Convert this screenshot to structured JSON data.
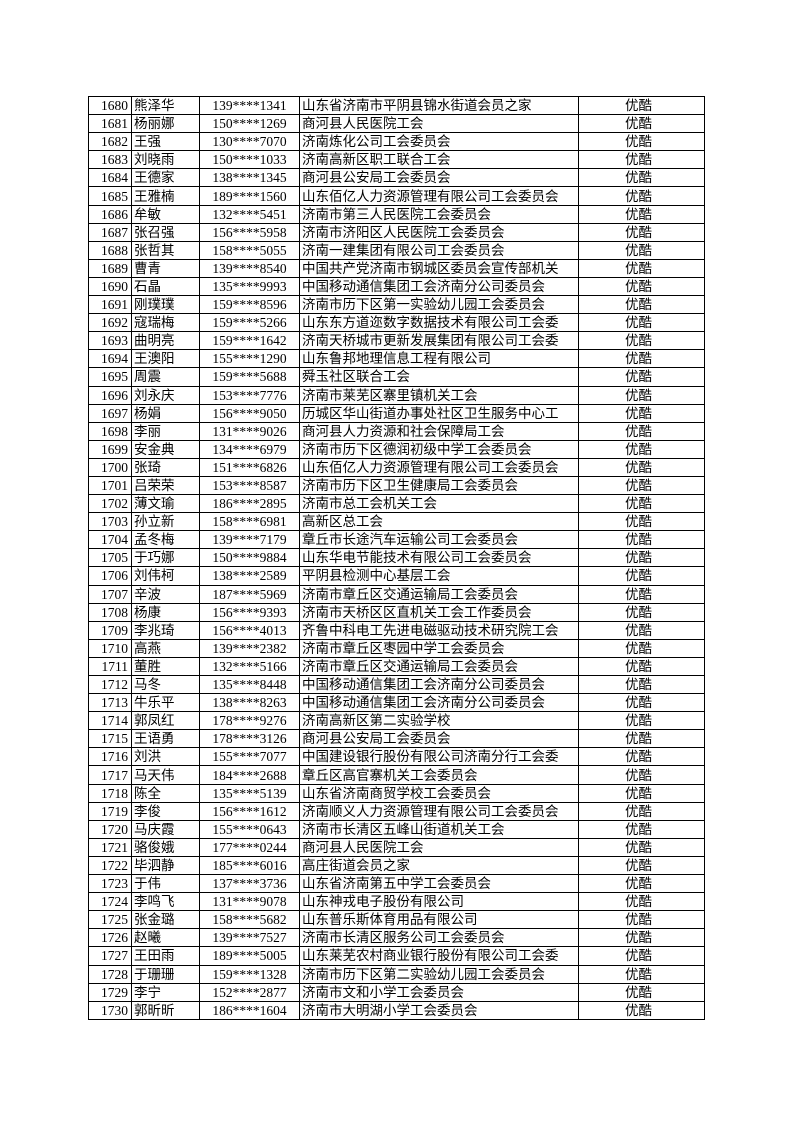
{
  "table": {
    "rows": [
      [
        "1680",
        "熊泽华",
        "139****1341",
        "山东省济南市平阴县锦水街道会员之家",
        "优酷"
      ],
      [
        "1681",
        "杨丽娜",
        "150****1269",
        "商河县人民医院工会",
        "优酷"
      ],
      [
        "1682",
        "王强",
        "130****7070",
        "济南炼化公司工会委员会",
        "优酷"
      ],
      [
        "1683",
        "刘晓雨",
        "150****1033",
        "济南高新区职工联合工会",
        "优酷"
      ],
      [
        "1684",
        "王德家",
        "138****1345",
        "商河县公安局工会委员会",
        "优酷"
      ],
      [
        "1685",
        "王雅楠",
        "189****1560",
        "山东佰亿人力资源管理有限公司工会委员会",
        "优酷"
      ],
      [
        "1686",
        "牟敏",
        "132****5451",
        "济南市第三人民医院工会委员会",
        "优酷"
      ],
      [
        "1687",
        "张召强",
        "156****5958",
        "济南市济阳区人民医院工会委员会",
        "优酷"
      ],
      [
        "1688",
        "张哲其",
        "158****5055",
        "济南一建集团有限公司工会委员会",
        "优酷"
      ],
      [
        "1689",
        "曹青",
        "139****8540",
        "中国共产党济南市钢城区委员会宣传部机关",
        "优酷"
      ],
      [
        "1690",
        "石晶",
        "135****9993",
        "中国移动通信集团工会济南分公司委员会",
        "优酷"
      ],
      [
        "1691",
        "刚璞璞",
        "159****8596",
        "济南市历下区第一实验幼儿园工会委员会",
        "优酷"
      ],
      [
        "1692",
        "寇瑞梅",
        "159****5266",
        "山东东方道迩数字数据技术有限公司工会委",
        "优酷"
      ],
      [
        "1693",
        "曲明亮",
        "159****1642",
        "济南天桥城市更新发展集团有限公司工会委",
        "优酷"
      ],
      [
        "1694",
        "王澳阳",
        "155****1290",
        "山东鲁邦地理信息工程有限公司",
        "优酷"
      ],
      [
        "1695",
        "周震",
        "159****5688",
        "舜玉社区联合工会",
        "优酷"
      ],
      [
        "1696",
        "刘永庆",
        "153****7776",
        "济南市莱芜区寨里镇机关工会",
        "优酷"
      ],
      [
        "1697",
        "杨娟",
        "156****9050",
        "历城区华山街道办事处社区卫生服务中心工",
        "优酷"
      ],
      [
        "1698",
        "李丽",
        "131****9026",
        "商河县人力资源和社会保障局工会",
        "优酷"
      ],
      [
        "1699",
        "安金典",
        "134****6979",
        "济南市历下区德润初级中学工会委员会",
        "优酷"
      ],
      [
        "1700",
        "张琦",
        "151****6826",
        "山东佰亿人力资源管理有限公司工会委员会",
        "优酷"
      ],
      [
        "1701",
        "吕荣荣",
        "153****8587",
        "济南市历下区卫生健康局工会委员会",
        "优酷"
      ],
      [
        "1702",
        "薄文瑜",
        "186****2895",
        "济南市总工会机关工会",
        "优酷"
      ],
      [
        "1703",
        "孙立新",
        "158****6981",
        "高新区总工会",
        "优酷"
      ],
      [
        "1704",
        "孟冬梅",
        "139****7179",
        "章丘市长途汽车运输公司工会委员会",
        "优酷"
      ],
      [
        "1705",
        "于巧娜",
        "150****9884",
        "山东华电节能技术有限公司工会委员会",
        "优酷"
      ],
      [
        "1706",
        "刘伟柯",
        "138****2589",
        "平阴县检测中心基层工会",
        "优酷"
      ],
      [
        "1707",
        "辛波",
        "187****5969",
        "济南市章丘区交通运输局工会委员会",
        "优酷"
      ],
      [
        "1708",
        "杨康",
        "156****9393",
        "济南市天桥区区直机关工会工作委员会",
        "优酷"
      ],
      [
        "1709",
        "李兆琦",
        "156****4013",
        "齐鲁中科电工先进电磁驱动技术研究院工会",
        "优酷"
      ],
      [
        "1710",
        "高燕",
        "139****2382",
        "济南市章丘区枣园中学工会委员会",
        "优酷"
      ],
      [
        "1711",
        "董胜",
        "132****5166",
        "济南市章丘区交通运输局工会委员会",
        "优酷"
      ],
      [
        "1712",
        "马冬",
        "135****8448",
        "中国移动通信集团工会济南分公司委员会",
        "优酷"
      ],
      [
        "1713",
        "牛乐平",
        "138****8263",
        "中国移动通信集团工会济南分公司委员会",
        "优酷"
      ],
      [
        "1714",
        "郭凤红",
        "178****9276",
        "济南高新区第二实验学校",
        "优酷"
      ],
      [
        "1715",
        "王语勇",
        "178****3126",
        "商河县公安局工会委员会",
        "优酷"
      ],
      [
        "1716",
        "刘洪",
        "155****7077",
        "中国建设银行股份有限公司济南分行工会委",
        "优酷"
      ],
      [
        "1717",
        "马天伟",
        "184****2688",
        "章丘区高官寨机关工会委员会",
        "优酷"
      ],
      [
        "1718",
        "陈全",
        "135****5139",
        "山东省济南商贸学校工会委员会",
        "优酷"
      ],
      [
        "1719",
        "李俊",
        "156****1612",
        "济南顺义人力资源管理有限公司工会委员会",
        "优酷"
      ],
      [
        "1720",
        "马庆霞",
        "155****0643",
        "济南市长清区五峰山街道机关工会",
        "优酷"
      ],
      [
        "1721",
        "骆俊娥",
        "177****0244",
        "商河县人民医院工会",
        "优酷"
      ],
      [
        "1722",
        "毕泗静",
        "185****6016",
        "高庄街道会员之家",
        "优酷"
      ],
      [
        "1723",
        "于伟",
        "137****3736",
        "山东省济南第五中学工会委员会",
        "优酷"
      ],
      [
        "1724",
        "李鸣飞",
        "131****9078",
        "山东神戎电子股份有限公司",
        "优酷"
      ],
      [
        "1725",
        "张金璐",
        "158****5682",
        "山东普乐斯体育用品有限公司",
        "优酷"
      ],
      [
        "1726",
        "赵曦",
        "139****7527",
        "济南市长清区服务公司工会委员会",
        "优酷"
      ],
      [
        "1727",
        "王田雨",
        "189****5005",
        "山东莱芜农村商业银行股份有限公司工会委",
        "优酷"
      ],
      [
        "1728",
        "于珊珊",
        "159****1328",
        "济南市历下区第二实验幼儿园工会委员会",
        "优酷"
      ],
      [
        "1729",
        "李宁",
        "152****2877",
        "济南市文和小学工会委员会",
        "优酷"
      ],
      [
        "1730",
        "郭昕昕",
        "186****1604",
        "济南市大明湖小学工会委员会",
        "优酷"
      ]
    ]
  }
}
